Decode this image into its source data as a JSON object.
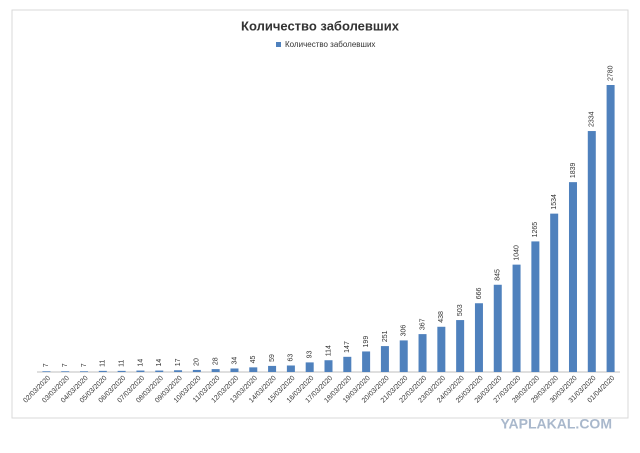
{
  "chart_data": {
    "type": "bar",
    "title": "Количество заболевших",
    "categories": [
      "02/03/2020",
      "03/03/2020",
      "04/03/2020",
      "05/03/2020",
      "06/03/2020",
      "07/03/2020",
      "08/03/2020",
      "09/03/2020",
      "10/03/2020",
      "11/03/2020",
      "12/03/2020",
      "13/03/2020",
      "14/03/2020",
      "15/03/2020",
      "16/03/2020",
      "17/03/2020",
      "18/03/2020",
      "19/03/2020",
      "20/03/2020",
      "21/03/2020",
      "22/03/2020",
      "23/03/2020",
      "24/03/2020",
      "25/03/2020",
      "26/03/2020",
      "27/03/2020",
      "28/03/2020",
      "29/03/2020",
      "30/03/2020",
      "31/03/2020",
      "01/04/2020"
    ],
    "series": [
      {
        "name": "Количество заболевших",
        "color": "#4f81bd",
        "values": [
          7,
          7,
          7,
          11,
          11,
          14,
          14,
          17,
          20,
          28,
          34,
          45,
          59,
          63,
          93,
          114,
          147,
          199,
          251,
          306,
          367,
          438,
          503,
          666,
          845,
          1040,
          1265,
          1534,
          1839,
          2334,
          2780
        ]
      }
    ],
    "legend": "top",
    "watermark": "YAPLAKAL.COM"
  }
}
